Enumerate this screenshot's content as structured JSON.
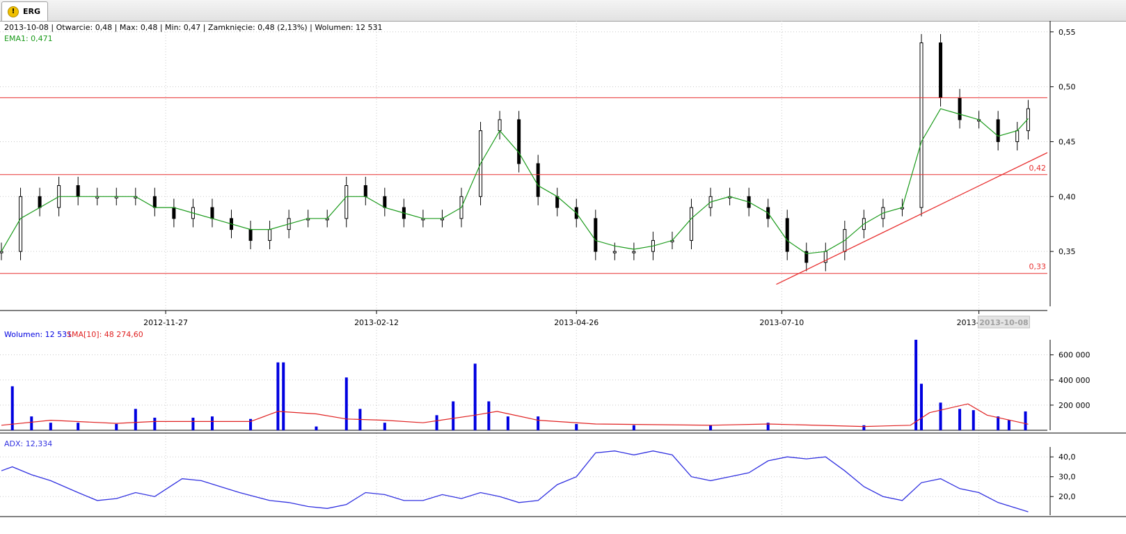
{
  "tab": {
    "title": "ERG",
    "icon": "warning-icon"
  },
  "info": {
    "ohlc_line": "2013-10-08 | Otwarcie: 0,48 | Max: 0,48 | Min: 0,47 | Zamknięcie: 0,48 (2,13%)  | Wolumen: 12 531",
    "ema_label": "EMA1: 0,471",
    "volume_label": "Wolumen: 12 531",
    "sma_label": "SMA[10]: 48 274,60",
    "adx_label": "ADX: 12,334"
  },
  "colors": {
    "price": "#000000",
    "ema": "#1a9a1a",
    "hline": "#e83030",
    "volume": "#0000e0",
    "sma": "#e02020",
    "adx": "#3030e0"
  },
  "chart_data": [
    {
      "type": "line",
      "panel": "price",
      "ylim": [
        0.3,
        0.56
      ],
      "x_dates": [
        "2012-09-28",
        "2013-10-15"
      ],
      "x_tick_labels": [
        "2012-11-27",
        "2013-02-12",
        "2013-04-26",
        "2013-07-10",
        "2013-09-20"
      ],
      "current_date_label": "2013-10-08",
      "y_ticks": [
        "0,35",
        "0,40",
        "0,45",
        "0,50",
        "0,55"
      ],
      "horizontal_lines": [
        {
          "value": 0.49,
          "label": ""
        },
        {
          "value": 0.42,
          "label": "0,42"
        },
        {
          "value": 0.33,
          "label": "0,33"
        }
      ],
      "trendline": [
        [
          "2013-07-08",
          0.32
        ],
        [
          "2013-10-15",
          0.44
        ]
      ],
      "series": [
        {
          "name": "price",
          "points": [
            [
              "2012-09-28",
              0.35
            ],
            [
              "2012-10-05",
              0.4
            ],
            [
              "2012-10-12",
              0.39
            ],
            [
              "2012-10-19",
              0.41
            ],
            [
              "2012-10-26",
              0.4
            ],
            [
              "2012-11-02",
              0.4
            ],
            [
              "2012-11-09",
              0.4
            ],
            [
              "2012-11-16",
              0.4
            ],
            [
              "2012-11-23",
              0.39
            ],
            [
              "2012-11-30",
              0.38
            ],
            [
              "2012-12-07",
              0.39
            ],
            [
              "2012-12-14",
              0.38
            ],
            [
              "2012-12-21",
              0.37
            ],
            [
              "2012-12-28",
              0.36
            ],
            [
              "2013-01-04",
              0.37
            ],
            [
              "2013-01-11",
              0.38
            ],
            [
              "2013-01-18",
              0.38
            ],
            [
              "2013-01-25",
              0.38
            ],
            [
              "2013-02-01",
              0.41
            ],
            [
              "2013-02-08",
              0.4
            ],
            [
              "2013-02-15",
              0.39
            ],
            [
              "2013-02-22",
              0.38
            ],
            [
              "2013-03-01",
              0.38
            ],
            [
              "2013-03-08",
              0.38
            ],
            [
              "2013-03-15",
              0.4
            ],
            [
              "2013-03-22",
              0.46
            ],
            [
              "2013-03-29",
              0.47
            ],
            [
              "2013-04-05",
              0.43
            ],
            [
              "2013-04-12",
              0.4
            ],
            [
              "2013-04-19",
              0.39
            ],
            [
              "2013-04-26",
              0.38
            ],
            [
              "2013-05-03",
              0.35
            ],
            [
              "2013-05-10",
              0.35
            ],
            [
              "2013-05-17",
              0.35
            ],
            [
              "2013-05-24",
              0.36
            ],
            [
              "2013-05-31",
              0.36
            ],
            [
              "2013-06-07",
              0.39
            ],
            [
              "2013-06-14",
              0.4
            ],
            [
              "2013-06-21",
              0.4
            ],
            [
              "2013-06-28",
              0.39
            ],
            [
              "2013-07-05",
              0.38
            ],
            [
              "2013-07-12",
              0.35
            ],
            [
              "2013-07-19",
              0.34
            ],
            [
              "2013-07-26",
              0.35
            ],
            [
              "2013-08-02",
              0.37
            ],
            [
              "2013-08-09",
              0.38
            ],
            [
              "2013-08-16",
              0.39
            ],
            [
              "2013-08-23",
              0.39
            ],
            [
              "2013-08-30",
              0.54
            ],
            [
              "2013-09-06",
              0.49
            ],
            [
              "2013-09-13",
              0.47
            ],
            [
              "2013-09-20",
              0.47
            ],
            [
              "2013-09-27",
              0.45
            ],
            [
              "2013-10-04",
              0.46
            ],
            [
              "2013-10-08",
              0.48
            ]
          ]
        },
        {
          "name": "EMA1",
          "points": [
            [
              "2012-09-28",
              0.35
            ],
            [
              "2012-10-05",
              0.38
            ],
            [
              "2012-10-12",
              0.39
            ],
            [
              "2012-10-19",
              0.4
            ],
            [
              "2012-10-26",
              0.4
            ],
            [
              "2012-11-02",
              0.4
            ],
            [
              "2012-11-09",
              0.4
            ],
            [
              "2012-11-16",
              0.4
            ],
            [
              "2012-11-23",
              0.39
            ],
            [
              "2012-11-30",
              0.39
            ],
            [
              "2012-12-07",
              0.385
            ],
            [
              "2012-12-14",
              0.38
            ],
            [
              "2012-12-21",
              0.375
            ],
            [
              "2012-12-28",
              0.37
            ],
            [
              "2013-01-04",
              0.37
            ],
            [
              "2013-01-11",
              0.375
            ],
            [
              "2013-01-18",
              0.38
            ],
            [
              "2013-01-25",
              0.38
            ],
            [
              "2013-02-01",
              0.4
            ],
            [
              "2013-02-08",
              0.4
            ],
            [
              "2013-02-15",
              0.39
            ],
            [
              "2013-02-22",
              0.385
            ],
            [
              "2013-03-01",
              0.38
            ],
            [
              "2013-03-08",
              0.38
            ],
            [
              "2013-03-15",
              0.39
            ],
            [
              "2013-03-22",
              0.43
            ],
            [
              "2013-03-29",
              0.46
            ],
            [
              "2013-04-05",
              0.44
            ],
            [
              "2013-04-12",
              0.41
            ],
            [
              "2013-04-19",
              0.4
            ],
            [
              "2013-04-26",
              0.385
            ],
            [
              "2013-05-03",
              0.36
            ],
            [
              "2013-05-10",
              0.355
            ],
            [
              "2013-05-17",
              0.352
            ],
            [
              "2013-05-24",
              0.355
            ],
            [
              "2013-05-31",
              0.36
            ],
            [
              "2013-06-07",
              0.38
            ],
            [
              "2013-06-14",
              0.395
            ],
            [
              "2013-06-21",
              0.4
            ],
            [
              "2013-06-28",
              0.395
            ],
            [
              "2013-07-05",
              0.385
            ],
            [
              "2013-07-12",
              0.36
            ],
            [
              "2013-07-19",
              0.348
            ],
            [
              "2013-07-26",
              0.35
            ],
            [
              "2013-08-02",
              0.36
            ],
            [
              "2013-08-09",
              0.375
            ],
            [
              "2013-08-16",
              0.385
            ],
            [
              "2013-08-23",
              0.39
            ],
            [
              "2013-08-30",
              0.45
            ],
            [
              "2013-09-06",
              0.48
            ],
            [
              "2013-09-13",
              0.475
            ],
            [
              "2013-09-20",
              0.47
            ],
            [
              "2013-09-27",
              0.455
            ],
            [
              "2013-10-04",
              0.46
            ],
            [
              "2013-10-08",
              0.471
            ]
          ]
        }
      ]
    },
    {
      "type": "bar",
      "panel": "volume",
      "ylim": [
        0,
        720000
      ],
      "y_ticks": [
        "200 000",
        "400 000",
        "600 000"
      ],
      "series": [
        {
          "name": "Wolumen",
          "points": [
            [
              "2012-10-02",
              350000
            ],
            [
              "2012-10-09",
              110000
            ],
            [
              "2012-10-16",
              60000
            ],
            [
              "2012-10-26",
              60000
            ],
            [
              "2012-11-09",
              50000
            ],
            [
              "2012-11-16",
              170000
            ],
            [
              "2012-11-23",
              100000
            ],
            [
              "2012-12-07",
              100000
            ],
            [
              "2012-12-14",
              110000
            ],
            [
              "2012-12-28",
              90000
            ],
            [
              "2013-01-07",
              540000
            ],
            [
              "2013-01-09",
              540000
            ],
            [
              "2013-01-21",
              30000
            ],
            [
              "2013-02-01",
              420000
            ],
            [
              "2013-02-06",
              170000
            ],
            [
              "2013-02-15",
              60000
            ],
            [
              "2013-03-06",
              120000
            ],
            [
              "2013-03-12",
              230000
            ],
            [
              "2013-03-20",
              530000
            ],
            [
              "2013-03-25",
              230000
            ],
            [
              "2013-04-01",
              110000
            ],
            [
              "2013-04-12",
              110000
            ],
            [
              "2013-04-26",
              50000
            ],
            [
              "2013-05-17",
              40000
            ],
            [
              "2013-06-14",
              40000
            ],
            [
              "2013-07-05",
              60000
            ],
            [
              "2013-08-09",
              40000
            ],
            [
              "2013-08-28",
              720000
            ],
            [
              "2013-08-30",
              370000
            ],
            [
              "2013-09-06",
              220000
            ],
            [
              "2013-09-13",
              170000
            ],
            [
              "2013-09-18",
              160000
            ],
            [
              "2013-09-27",
              110000
            ],
            [
              "2013-10-01",
              80000
            ],
            [
              "2013-10-07",
              150000
            ]
          ]
        },
        {
          "name": "SMA[10]",
          "points": [
            [
              "2012-09-28",
              40000
            ],
            [
              "2012-10-16",
              80000
            ],
            [
              "2012-11-09",
              55000
            ],
            [
              "2012-11-23",
              70000
            ],
            [
              "2012-12-28",
              70000
            ],
            [
              "2013-01-07",
              150000
            ],
            [
              "2013-01-21",
              130000
            ],
            [
              "2013-02-01",
              90000
            ],
            [
              "2013-02-15",
              80000
            ],
            [
              "2013-03-01",
              60000
            ],
            [
              "2013-03-20",
              120000
            ],
            [
              "2013-03-28",
              150000
            ],
            [
              "2013-04-12",
              80000
            ],
            [
              "2013-05-03",
              50000
            ],
            [
              "2013-06-14",
              40000
            ],
            [
              "2013-07-05",
              50000
            ],
            [
              "2013-08-09",
              30000
            ],
            [
              "2013-08-26",
              40000
            ],
            [
              "2013-09-02",
              140000
            ],
            [
              "2013-09-16",
              210000
            ],
            [
              "2013-09-23",
              120000
            ],
            [
              "2013-10-08",
              48000
            ]
          ]
        }
      ]
    },
    {
      "type": "line",
      "panel": "adx",
      "ylim": [
        12,
        45
      ],
      "y_ticks": [
        "20,0",
        "30,0",
        "40,0"
      ],
      "series": [
        {
          "name": "ADX",
          "points": [
            [
              "2012-09-28",
              33
            ],
            [
              "2012-10-02",
              35
            ],
            [
              "2012-10-09",
              31
            ],
            [
              "2012-10-16",
              28
            ],
            [
              "2012-10-26",
              22
            ],
            [
              "2012-11-02",
              18
            ],
            [
              "2012-11-09",
              19
            ],
            [
              "2012-11-16",
              22
            ],
            [
              "2012-11-23",
              20
            ],
            [
              "2012-12-03",
              29
            ],
            [
              "2012-12-10",
              28
            ],
            [
              "2012-12-17",
              25
            ],
            [
              "2012-12-24",
              22
            ],
            [
              "2013-01-04",
              18
            ],
            [
              "2013-01-11",
              17
            ],
            [
              "2013-01-18",
              15
            ],
            [
              "2013-01-25",
              14
            ],
            [
              "2013-02-01",
              16
            ],
            [
              "2013-02-08",
              22
            ],
            [
              "2013-02-15",
              21
            ],
            [
              "2013-02-22",
              18
            ],
            [
              "2013-03-01",
              18
            ],
            [
              "2013-03-08",
              21
            ],
            [
              "2013-03-15",
              19
            ],
            [
              "2013-03-22",
              22
            ],
            [
              "2013-03-29",
              20
            ],
            [
              "2013-04-05",
              17
            ],
            [
              "2013-04-12",
              18
            ],
            [
              "2013-04-19",
              26
            ],
            [
              "2013-04-26",
              30
            ],
            [
              "2013-05-03",
              42
            ],
            [
              "2013-05-10",
              43
            ],
            [
              "2013-05-17",
              41
            ],
            [
              "2013-05-24",
              43
            ],
            [
              "2013-05-31",
              41
            ],
            [
              "2013-06-07",
              30
            ],
            [
              "2013-06-14",
              28
            ],
            [
              "2013-06-21",
              30
            ],
            [
              "2013-06-28",
              32
            ],
            [
              "2013-07-05",
              38
            ],
            [
              "2013-07-12",
              40
            ],
            [
              "2013-07-19",
              39
            ],
            [
              "2013-07-26",
              40
            ],
            [
              "2013-08-02",
              33
            ],
            [
              "2013-08-09",
              25
            ],
            [
              "2013-08-16",
              20
            ],
            [
              "2013-08-23",
              18
            ],
            [
              "2013-08-30",
              27
            ],
            [
              "2013-09-06",
              29
            ],
            [
              "2013-09-13",
              24
            ],
            [
              "2013-09-20",
              22
            ],
            [
              "2013-09-27",
              17
            ],
            [
              "2013-10-04",
              14
            ],
            [
              "2013-10-08",
              12.3
            ]
          ]
        }
      ]
    }
  ]
}
